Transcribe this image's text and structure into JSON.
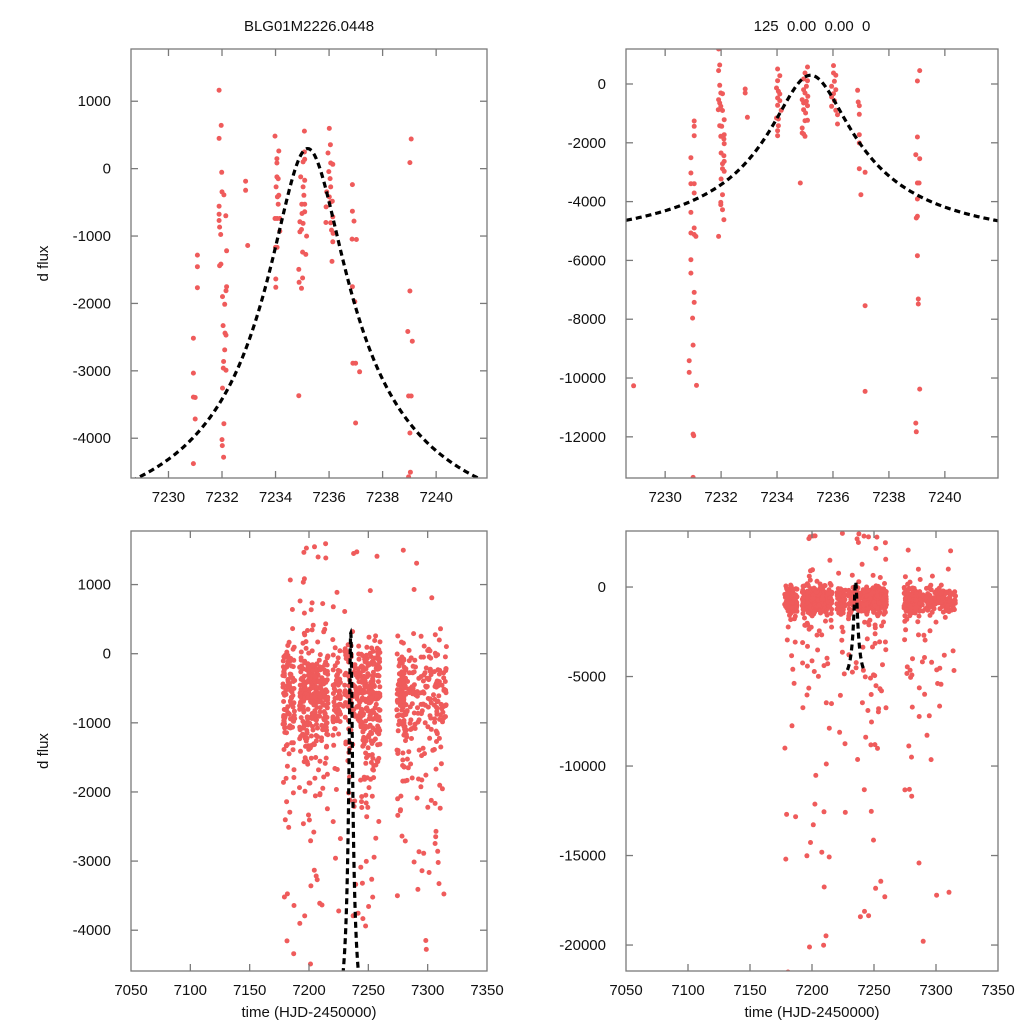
{
  "colors": {
    "points": "#ef5b5b",
    "model": "#000000",
    "axes": "#7a7a7a"
  },
  "chart_data": [
    {
      "type": "scatter",
      "title": "BLG01M2226.0448",
      "xlabel": "",
      "ylabel": "d flux",
      "xlim": [
        7228.6,
        7241.9
      ],
      "ylim": [
        -4590,
        1775
      ],
      "xticks": [
        7230,
        7232,
        7234,
        7236,
        7238,
        7240
      ],
      "yticks": [
        1000,
        0,
        -1000,
        -2000,
        -3000,
        -4000
      ],
      "model": {
        "type": "paczynski",
        "t0": 7235.2,
        "u0": 0.1,
        "tE": 14.5,
        "fs": 639,
        "fb": -6116,
        "trange": [
          7228.6,
          7241.9
        ]
      },
      "points": [
        [
          7230.93,
          -2516
        ],
        [
          7230.93,
          -3034
        ],
        [
          7230.93,
          -3389
        ],
        [
          7231.0,
          -3395
        ],
        [
          7231.0,
          -3715
        ],
        [
          7230.93,
          -4376
        ],
        [
          7231.08,
          -1283
        ],
        [
          7231.08,
          -1455
        ],
        [
          7231.08,
          -1766
        ],
        [
          7231.89,
          1164
        ],
        [
          7231.97,
          641
        ],
        [
          7231.89,
          449
        ],
        [
          7231.99,
          -54
        ],
        [
          7232.0,
          -345
        ],
        [
          7232.07,
          -390
        ],
        [
          7231.89,
          -557
        ],
        [
          7231.89,
          -676
        ],
        [
          7231.89,
          -770
        ],
        [
          7231.91,
          -868
        ],
        [
          7231.95,
          -977
        ],
        [
          7232.14,
          -700
        ],
        [
          7232.17,
          -1219
        ],
        [
          7231.96,
          -1416
        ],
        [
          7231.91,
          -1440
        ],
        [
          7232.17,
          -1751
        ],
        [
          7232.15,
          -1811
        ],
        [
          7232.02,
          -1899
        ],
        [
          7232.1,
          -2013
        ],
        [
          7232.04,
          -2329
        ],
        [
          7232.11,
          -2440
        ],
        [
          7232.15,
          -2470
        ],
        [
          7232.1,
          -2689
        ],
        [
          7232.06,
          -2861
        ],
        [
          7232.05,
          -2960
        ],
        [
          7232.15,
          -2990
        ],
        [
          7232.02,
          -3256
        ],
        [
          7232.07,
          -3784
        ],
        [
          7232.0,
          -4021
        ],
        [
          7232.01,
          -4110
        ],
        [
          7232.06,
          -4282
        ],
        [
          7232.88,
          -187
        ],
        [
          7232.88,
          -321
        ],
        [
          7232.96,
          -1140
        ],
        [
          7233.98,
          483
        ],
        [
          7234.12,
          261
        ],
        [
          7234.05,
          148
        ],
        [
          7234.05,
          84
        ],
        [
          7234.05,
          -123
        ],
        [
          7234.1,
          -150
        ],
        [
          7234.02,
          -271
        ],
        [
          7234.12,
          -395
        ],
        [
          7234.07,
          -420
        ],
        [
          7234.1,
          -528
        ],
        [
          7233.98,
          -740
        ],
        [
          7234.06,
          -740
        ],
        [
          7234.16,
          -740
        ],
        [
          7234.16,
          -927
        ],
        [
          7234.0,
          -1169
        ],
        [
          7234.06,
          -1169
        ],
        [
          7234.01,
          -1638
        ],
        [
          7234.01,
          -1761
        ],
        [
          7235.08,
          557
        ],
        [
          7235.08,
          247
        ],
        [
          7235.09,
          138
        ],
        [
          7235.03,
          100
        ],
        [
          7234.94,
          -123
        ],
        [
          7235.09,
          -173
        ],
        [
          7235.03,
          -271
        ],
        [
          7235.06,
          -395
        ],
        [
          7235.09,
          -528
        ],
        [
          7234.98,
          -528
        ],
        [
          7235.09,
          -641
        ],
        [
          7234.99,
          -665
        ],
        [
          7234.91,
          -789
        ],
        [
          7235.03,
          -813
        ],
        [
          7234.97,
          -903
        ],
        [
          7234.91,
          -937
        ],
        [
          7235.16,
          -1001
        ],
        [
          7235.01,
          -1238
        ],
        [
          7235.13,
          -1273
        ],
        [
          7234.87,
          -1495
        ],
        [
          7235.01,
          -1623
        ],
        [
          7234.88,
          -1687
        ],
        [
          7234.97,
          -1776
        ],
        [
          7234.87,
          -3369
        ],
        [
          7236.01,
          597
        ],
        [
          7236.05,
          355
        ],
        [
          7235.96,
          232
        ],
        [
          7236.06,
          84
        ],
        [
          7236.14,
          64
        ],
        [
          7235.99,
          -44
        ],
        [
          7236.04,
          -148
        ],
        [
          7236.06,
          -271
        ],
        [
          7235.91,
          -345
        ],
        [
          7236.01,
          -420
        ],
        [
          7236.06,
          -493
        ],
        [
          7236.12,
          -483
        ],
        [
          7235.89,
          -567
        ],
        [
          7236.14,
          -715
        ],
        [
          7236.06,
          -804
        ],
        [
          7235.88,
          -799
        ],
        [
          7236.09,
          -912
        ],
        [
          7236.15,
          -961
        ],
        [
          7236.14,
          -1085
        ],
        [
          7236.11,
          -1376
        ],
        [
          7236.87,
          -237
        ],
        [
          7236.87,
          -631
        ],
        [
          7236.93,
          -779
        ],
        [
          7236.86,
          -1046
        ],
        [
          7237.02,
          -1051
        ],
        [
          7236.87,
          -1751
        ],
        [
          7236.96,
          -1973
        ],
        [
          7236.89,
          -2886
        ],
        [
          7236.99,
          -2886
        ],
        [
          7237.14,
          -3014
        ],
        [
          7236.99,
          -3774
        ],
        [
          7239.07,
          439
        ],
        [
          7239.02,
          89
        ],
        [
          7239.02,
          -1816
        ],
        [
          7238.94,
          -2417
        ],
        [
          7239.11,
          -2560
        ],
        [
          7238.97,
          -3374
        ],
        [
          7239.07,
          -3374
        ],
        [
          7239.02,
          -3922
        ],
        [
          7239.04,
          -4504
        ],
        [
          7238.97,
          -4573
        ]
      ]
    },
    {
      "type": "scatter",
      "title": "125  0.00  0.00  0",
      "xlabel": "",
      "ylabel": "",
      "xlim": [
        7228.6,
        7241.9
      ],
      "ylim": [
        -13400,
        1190
      ],
      "xticks": [
        7230,
        7232,
        7234,
        7236,
        7238,
        7240
      ],
      "yticks": [
        0,
        -2000,
        -4000,
        -6000,
        -8000,
        -10000,
        -12000
      ],
      "model": {
        "type": "paczynski",
        "t0": 7235.2,
        "u0": 0.1,
        "tE": 14.5,
        "fs": 639,
        "fb": -6116,
        "trange": [
          7228.6,
          7241.9
        ]
      },
      "points": [
        [
          7228.87,
          -10263
        ],
        [
          7231.04,
          -1259
        ],
        [
          7231.04,
          -1440
        ],
        [
          7231.04,
          -1758
        ],
        [
          7230.92,
          -2506
        ],
        [
          7230.92,
          -3028
        ],
        [
          7230.92,
          -3391
        ],
        [
          7231.04,
          -3391
        ],
        [
          7231.04,
          -3708
        ],
        [
          7230.92,
          -4366
        ],
        [
          7231.04,
          -4899
        ],
        [
          7230.92,
          -5069
        ],
        [
          7231.04,
          -5120
        ],
        [
          7231.1,
          -5182
        ],
        [
          7230.92,
          -5976
        ],
        [
          7230.92,
          -6430
        ],
        [
          7231.04,
          -7088
        ],
        [
          7231.04,
          -7428
        ],
        [
          7230.98,
          -7961
        ],
        [
          7231.0,
          -8879
        ],
        [
          7230.86,
          -9412
        ],
        [
          7230.86,
          -9809
        ],
        [
          7231.12,
          -10251
        ],
        [
          7231.0,
          -11907
        ],
        [
          7231.02,
          -11960
        ],
        [
          7231.0,
          -13380
        ],
        [
          7231.91,
          1191
        ],
        [
          7231.95,
          646
        ],
        [
          7231.91,
          454
        ],
        [
          7231.95,
          -45
        ],
        [
          7231.99,
          -306
        ],
        [
          7232.05,
          -330
        ],
        [
          7231.91,
          -533
        ],
        [
          7231.95,
          -646
        ],
        [
          7231.99,
          -760
        ],
        [
          7231.9,
          -873
        ],
        [
          7232.05,
          -900
        ],
        [
          7232.11,
          -1213
        ],
        [
          7231.95,
          -1418
        ],
        [
          7232.02,
          -1440
        ],
        [
          7232.11,
          -1724
        ],
        [
          7231.99,
          -1780
        ],
        [
          7232.1,
          -1871
        ],
        [
          7232.11,
          -2030
        ],
        [
          7232.0,
          -2347
        ],
        [
          7232.1,
          -2438
        ],
        [
          7232.11,
          -2631
        ],
        [
          7232.05,
          -2710
        ],
        [
          7232.05,
          -2880
        ],
        [
          7232.11,
          -2971
        ],
        [
          7232.0,
          -3232
        ],
        [
          7232.05,
          -3765
        ],
        [
          7231.99,
          -4026
        ],
        [
          7231.99,
          -4105
        ],
        [
          7232.05,
          -4275
        ],
        [
          7232.1,
          -4615
        ],
        [
          7231.91,
          -5182
        ],
        [
          7232.86,
          -170
        ],
        [
          7232.86,
          -306
        ],
        [
          7232.94,
          -1134
        ],
        [
          7234.02,
          510
        ],
        [
          7234.1,
          283
        ],
        [
          7234.02,
          113
        ],
        [
          7233.98,
          -136
        ],
        [
          7234.05,
          -249
        ],
        [
          7234.1,
          -340
        ],
        [
          7234.02,
          -476
        ],
        [
          7234.1,
          -567
        ],
        [
          7234.02,
          -726
        ],
        [
          7234.15,
          -896
        ],
        [
          7233.98,
          -1157
        ],
        [
          7234.05,
          -1190
        ],
        [
          7234.05,
          -1418
        ],
        [
          7234.02,
          -1588
        ],
        [
          7234.02,
          -1758
        ],
        [
          7235.09,
          578
        ],
        [
          7235.0,
          374
        ],
        [
          7234.95,
          170
        ],
        [
          7235.09,
          113
        ],
        [
          7235.05,
          -79
        ],
        [
          7234.95,
          -193
        ],
        [
          7235.0,
          -306
        ],
        [
          7235.1,
          -420
        ],
        [
          7234.9,
          -533
        ],
        [
          7235.05,
          -590
        ],
        [
          7234.95,
          -646
        ],
        [
          7235.09,
          -737
        ],
        [
          7234.95,
          -873
        ],
        [
          7235.02,
          -987
        ],
        [
          7235.09,
          -1236
        ],
        [
          7235.0,
          -1250
        ],
        [
          7234.9,
          -1497
        ],
        [
          7234.9,
          -1667
        ],
        [
          7234.95,
          -1700
        ],
        [
          7235.0,
          -1780
        ],
        [
          7234.83,
          -3368
        ],
        [
          7236.02,
          624
        ],
        [
          7236.02,
          374
        ],
        [
          7236.1,
          300
        ],
        [
          7236.05,
          90
        ],
        [
          7235.95,
          -79
        ],
        [
          7236.1,
          -193
        ],
        [
          7236.02,
          -329
        ],
        [
          7235.95,
          -442
        ],
        [
          7236.05,
          -567
        ],
        [
          7235.95,
          -760
        ],
        [
          7236.1,
          -896
        ],
        [
          7236.16,
          -1043
        ],
        [
          7236.16,
          -1361
        ],
        [
          7236.88,
          -215
        ],
        [
          7236.9,
          -612
        ],
        [
          7236.94,
          -737
        ],
        [
          7236.94,
          -1032
        ],
        [
          7236.94,
          -1724
        ],
        [
          7236.94,
          -2007
        ],
        [
          7236.94,
          -2880
        ],
        [
          7237.15,
          -3005
        ],
        [
          7237.0,
          -3765
        ],
        [
          7237.15,
          -7541
        ],
        [
          7237.15,
          -10456
        ],
        [
          7239.1,
          454
        ],
        [
          7239.02,
          102
        ],
        [
          7239.02,
          -1803
        ],
        [
          7238.96,
          -2404
        ],
        [
          7239.1,
          -2540
        ],
        [
          7239.02,
          -3368
        ],
        [
          7239.08,
          -3368
        ],
        [
          7239.02,
          -3912
        ],
        [
          7238.98,
          -4559
        ],
        [
          7239.02,
          -4500
        ],
        [
          7239.02,
          -5840
        ],
        [
          7239.05,
          -7314
        ],
        [
          7239.05,
          -7484
        ],
        [
          7239.1,
          -10376
        ],
        [
          7238.96,
          -11533
        ],
        [
          7238.98,
          -11828
        ]
      ]
    },
    {
      "type": "scatter",
      "title": "",
      "xlabel": "time (HJD-2450000)",
      "ylabel": "d flux",
      "xlim": [
        7050,
        7350
      ],
      "ylim": [
        -4590,
        1775
      ],
      "xticks": [
        7050,
        7100,
        7150,
        7200,
        7250,
        7300,
        7350
      ],
      "yticks": [
        1000,
        0,
        -1000,
        -2000,
        -3000,
        -4000
      ],
      "model": {
        "type": "paczynski",
        "t0": 7235.2,
        "u0": 0.1,
        "tE": 14.5,
        "fs": 639,
        "fb": -6116,
        "trange": [
          7228.6,
          7241.9
        ]
      },
      "point_seasons": {
        "seed": 11,
        "core_mean": -550,
        "core_sd": 380,
        "down_tail_fraction": 0.2,
        "down_tail_scale": 1500,
        "up_tail_fraction": 0.04,
        "up_tail_max": 1700,
        "seasons": [
          [
            7178,
            7188,
            120
          ],
          [
            7192,
            7216,
            330
          ],
          [
            7220,
            7227,
            70
          ],
          [
            7229,
            7241,
            80
          ],
          [
            7241,
            7260,
            260
          ],
          [
            7274,
            7282,
            110
          ],
          [
            7282,
            7316,
            200
          ]
        ]
      }
    },
    {
      "type": "scatter",
      "title": "",
      "xlabel": "time (HJD-2450000)",
      "ylabel": "",
      "xlim": [
        7050,
        7350
      ],
      "ylim": [
        -21450,
        3130
      ],
      "xticks": [
        7050,
        7100,
        7150,
        7200,
        7250,
        7300,
        7350
      ],
      "yticks": [
        0,
        -5000,
        -10000,
        -15000,
        -20000
      ],
      "model": {
        "type": "paczynski",
        "t0": 7235.2,
        "u0": 0.1,
        "tE": 14.5,
        "fs": 639,
        "fb": -6116,
        "trange": [
          7228.6,
          7241.9
        ]
      },
      "point_seasons": {
        "seed": 29,
        "core_mean": -700,
        "core_sd": 380,
        "down_tail_fraction": 0.18,
        "down_tail_scale": 5000,
        "up_tail_fraction": 0.03,
        "up_tail_max": 3000,
        "seasons": [
          [
            7178,
            7188,
            120
          ],
          [
            7192,
            7216,
            330
          ],
          [
            7220,
            7227,
            70
          ],
          [
            7229,
            7241,
            80
          ],
          [
            7241,
            7260,
            260
          ],
          [
            7274,
            7282,
            110
          ],
          [
            7282,
            7316,
            200
          ]
        ]
      }
    }
  ]
}
